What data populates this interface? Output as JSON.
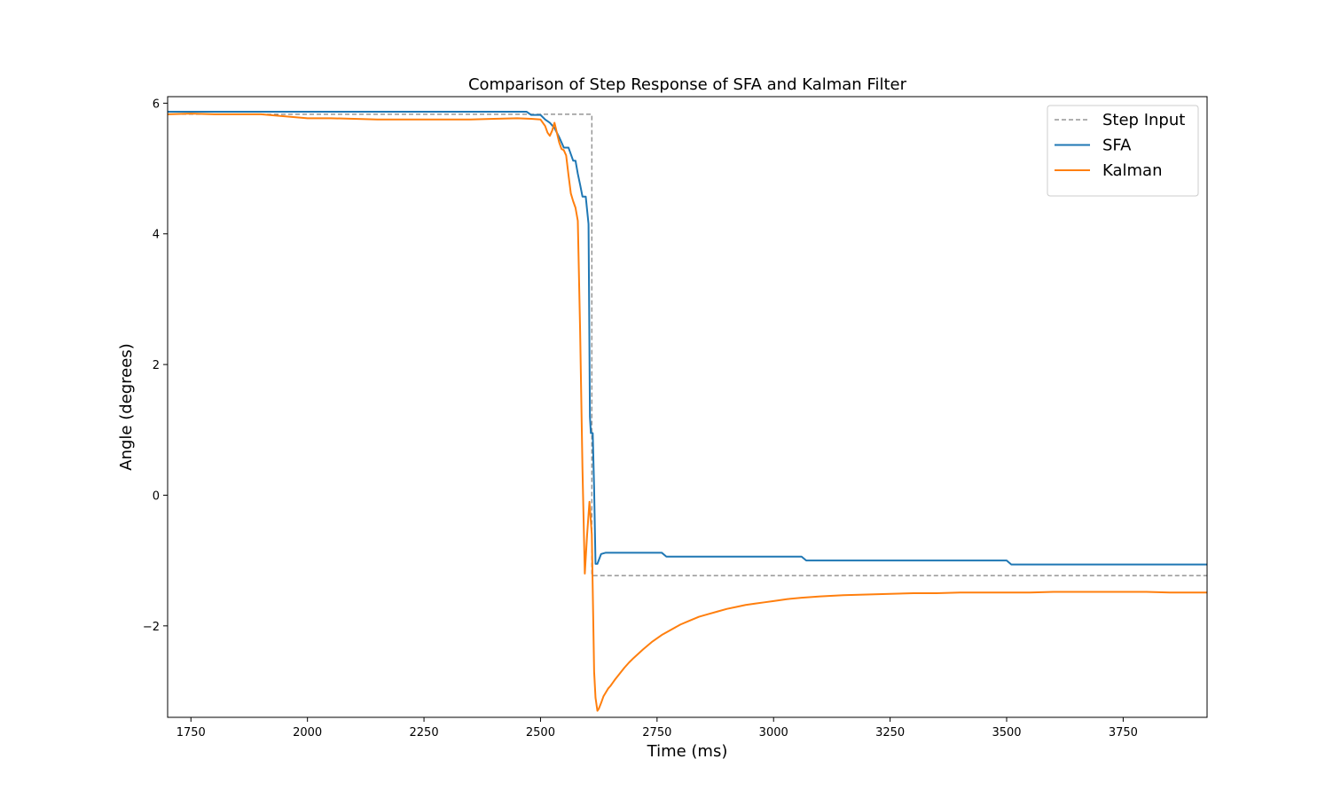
{
  "chart_data": {
    "type": "line",
    "title": "Comparison of Step Response of SFA and Kalman Filter",
    "xlabel": "Time (ms)",
    "ylabel": "Angle (degrees)",
    "xlim": [
      1700,
      3930
    ],
    "ylim": [
      -3.4,
      6.1
    ],
    "xticks": [
      1750,
      2000,
      2250,
      2500,
      2750,
      3000,
      3250,
      3500,
      3750
    ],
    "yticks": [
      -2,
      0,
      2,
      4,
      6
    ],
    "ytick_labels": [
      "−2",
      "0",
      "2",
      "4",
      "6"
    ],
    "grid": false,
    "legend": "upper right",
    "series": [
      {
        "name": "Step Input",
        "color": "#808080",
        "style": "dashed",
        "x": [
          1700,
          2610,
          2610,
          3930
        ],
        "y": [
          5.83,
          5.83,
          -1.23,
          -1.23
        ]
      },
      {
        "name": "SFA",
        "color": "#1f77b4",
        "style": "solid",
        "x": [
          1700,
          2470,
          2480,
          2500,
          2510,
          2520,
          2530,
          2540,
          2550,
          2560,
          2570,
          2575,
          2580,
          2585,
          2590,
          2597,
          2603,
          2606,
          2608,
          2612,
          2615,
          2618,
          2622,
          2630,
          2640,
          2660,
          2700,
          2760,
          2770,
          3060,
          3070,
          3500,
          3510,
          3930
        ],
        "y": [
          5.87,
          5.87,
          5.82,
          5.82,
          5.75,
          5.7,
          5.62,
          5.48,
          5.32,
          5.32,
          5.12,
          5.12,
          4.92,
          4.75,
          4.57,
          4.57,
          4.15,
          1.2,
          0.95,
          0.95,
          0.1,
          -1.05,
          -1.05,
          -0.9,
          -0.88,
          -0.88,
          -0.88,
          -0.88,
          -0.94,
          -0.94,
          -1.0,
          -1.0,
          -1.06,
          -1.06
        ]
      },
      {
        "name": "Kalman",
        "color": "#ff7f0e",
        "style": "solid",
        "x": [
          1700,
          1750,
          1800,
          1850,
          1900,
          1950,
          2000,
          2050,
          2100,
          2150,
          2200,
          2250,
          2300,
          2350,
          2400,
          2450,
          2480,
          2500,
          2510,
          2515,
          2520,
          2525,
          2530,
          2535,
          2540,
          2545,
          2550,
          2555,
          2560,
          2565,
          2570,
          2575,
          2580,
          2585,
          2590,
          2595,
          2600,
          2605,
          2610,
          2615,
          2618,
          2622,
          2625,
          2630,
          2635,
          2640,
          2645,
          2650,
          2655,
          2660,
          2670,
          2680,
          2690,
          2700,
          2720,
          2740,
          2760,
          2780,
          2800,
          2820,
          2840,
          2860,
          2880,
          2900,
          2920,
          2940,
          2960,
          2980,
          3000,
          3030,
          3060,
          3100,
          3150,
          3200,
          3250,
          3300,
          3350,
          3400,
          3450,
          3500,
          3550,
          3600,
          3650,
          3700,
          3750,
          3800,
          3850,
          3900,
          3930
        ],
        "y": [
          5.83,
          5.84,
          5.83,
          5.83,
          5.83,
          5.8,
          5.77,
          5.77,
          5.76,
          5.75,
          5.75,
          5.75,
          5.75,
          5.75,
          5.76,
          5.77,
          5.76,
          5.75,
          5.65,
          5.55,
          5.5,
          5.58,
          5.7,
          5.55,
          5.4,
          5.3,
          5.28,
          5.2,
          4.9,
          4.62,
          4.5,
          4.4,
          4.2,
          2.5,
          0.4,
          -1.2,
          -0.6,
          -0.1,
          -0.6,
          -2.7,
          -3.1,
          -3.3,
          -3.27,
          -3.18,
          -3.08,
          -3.02,
          -2.96,
          -2.92,
          -2.87,
          -2.82,
          -2.73,
          -2.64,
          -2.56,
          -2.49,
          -2.36,
          -2.24,
          -2.14,
          -2.06,
          -1.98,
          -1.92,
          -1.86,
          -1.82,
          -1.78,
          -1.74,
          -1.71,
          -1.68,
          -1.66,
          -1.64,
          -1.62,
          -1.59,
          -1.57,
          -1.55,
          -1.53,
          -1.52,
          -1.51,
          -1.5,
          -1.5,
          -1.49,
          -1.49,
          -1.49,
          -1.49,
          -1.48,
          -1.48,
          -1.48,
          -1.48,
          -1.48,
          -1.49,
          -1.49,
          -1.49
        ]
      }
    ]
  }
}
